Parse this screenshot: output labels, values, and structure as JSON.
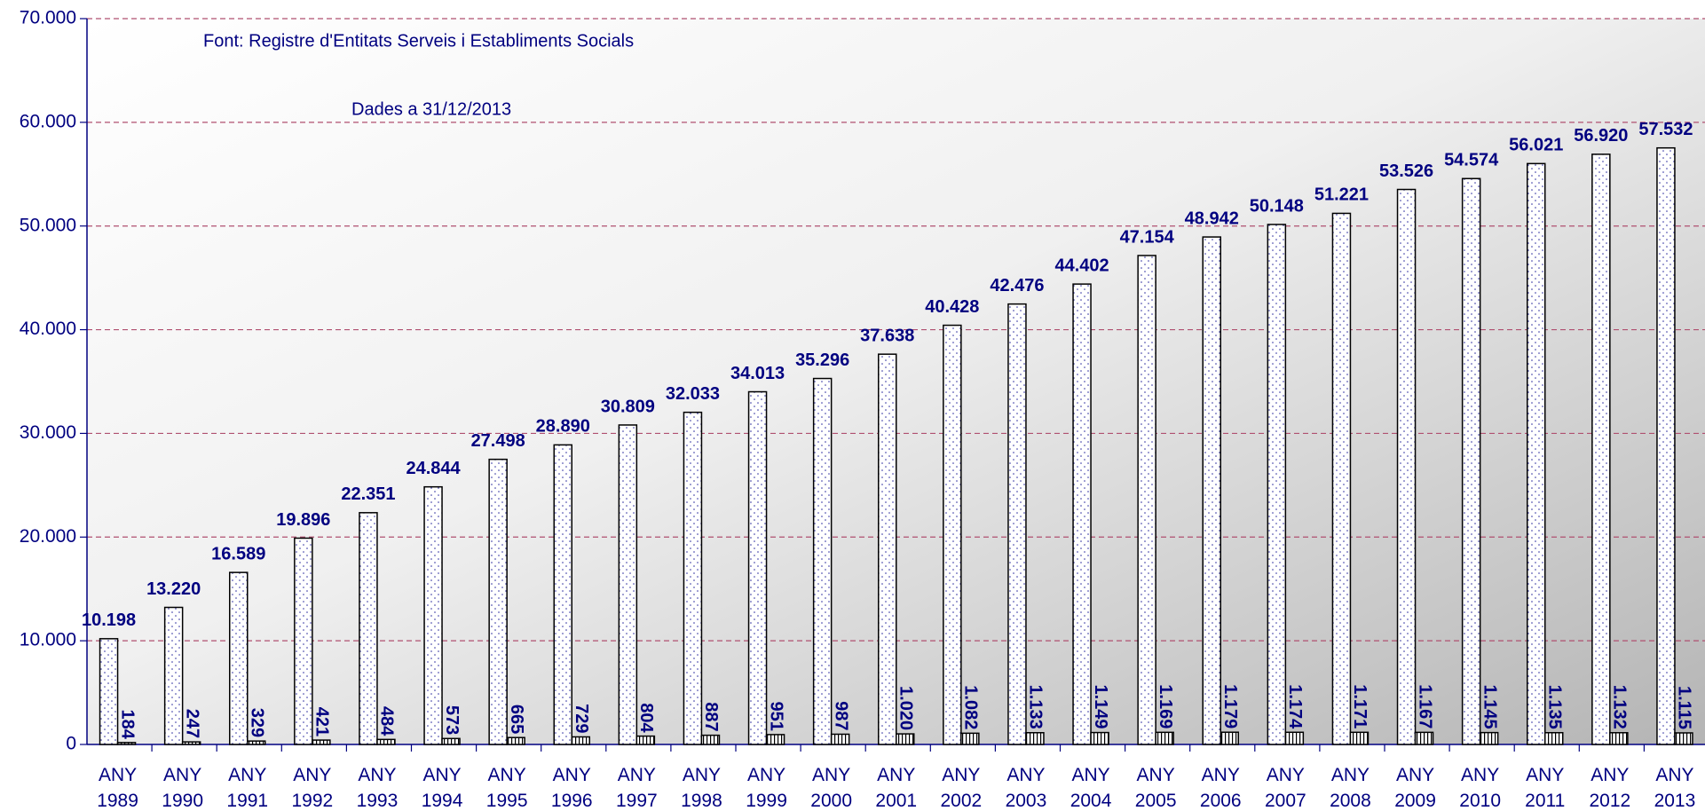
{
  "chart_data": {
    "type": "bar",
    "annotations": [
      "Font: Registre d'Entitats Serveis i Establiments Socials",
      "Dades a 31/12/2013"
    ],
    "categories": [
      "ANY 1989",
      "ANY 1990",
      "ANY 1991",
      "ANY 1992",
      "ANY 1993",
      "ANY 1994",
      "ANY 1995",
      "ANY 1996",
      "ANY 1997",
      "ANY 1998",
      "ANY 1999",
      "ANY 2000",
      "ANY 2001",
      "ANY 2002",
      "ANY 2003",
      "ANY 2004",
      "ANY 2005",
      "ANY 2006",
      "ANY 2007",
      "ANY 2008",
      "ANY 2009",
      "ANY 2010",
      "ANY 2011",
      "ANY 2012",
      "ANY 2013"
    ],
    "series": [
      {
        "color": "#ffffff",
        "values": [
          10198,
          13220,
          16589,
          19896,
          22351,
          24844,
          27498,
          28890,
          30809,
          32033,
          34013,
          35296,
          37638,
          40428,
          42476,
          44402,
          47154,
          48942,
          50148,
          51221,
          53526,
          54574,
          56021,
          56920,
          57532
        ],
        "value_labels": [
          "10.198",
          "13.220",
          "16.589",
          "19.896",
          "22.351",
          "24.844",
          "27.498",
          "28.890",
          "30.809",
          "32.033",
          "34.013",
          "35.296",
          "37.638",
          "40.428",
          "42.476",
          "44.402",
          "47.154",
          "48.942",
          "50.148",
          "51.221",
          "53.526",
          "54.574",
          "56.021",
          "56.920",
          "57.532"
        ]
      },
      {
        "color": "#ffffff",
        "values": [
          184,
          247,
          329,
          421,
          484,
          573,
          665,
          729,
          804,
          887,
          951,
          987,
          1020,
          1082,
          1133,
          1149,
          1169,
          1179,
          1174,
          1171,
          1167,
          1145,
          1135,
          1132,
          1115
        ],
        "value_labels": [
          "184",
          "247",
          "329",
          "421",
          "484",
          "573",
          "665",
          "729",
          "804",
          "887",
          "951",
          "987",
          "1.020",
          "1.082",
          "1.133",
          "1.149",
          "1.169",
          "1.179",
          "1.174",
          "1.171",
          "1.167",
          "1.145",
          "1.135",
          "1.132",
          "1.115"
        ]
      }
    ],
    "ylim": [
      0,
      70000
    ],
    "yticks": [
      0,
      {
        "value": 10000,
        "label": "10.000"
      },
      {
        "value": 20000,
        "label": "20.000"
      },
      {
        "value": 30000,
        "label": "30.000"
      },
      {
        "value": 40000,
        "label": "40.000"
      },
      {
        "value": 50000,
        "label": "50.000"
      },
      {
        "value": 60000,
        "label": "60.000"
      },
      {
        "value": 70000,
        "label": "70.000"
      }
    ],
    "grid": true
  }
}
